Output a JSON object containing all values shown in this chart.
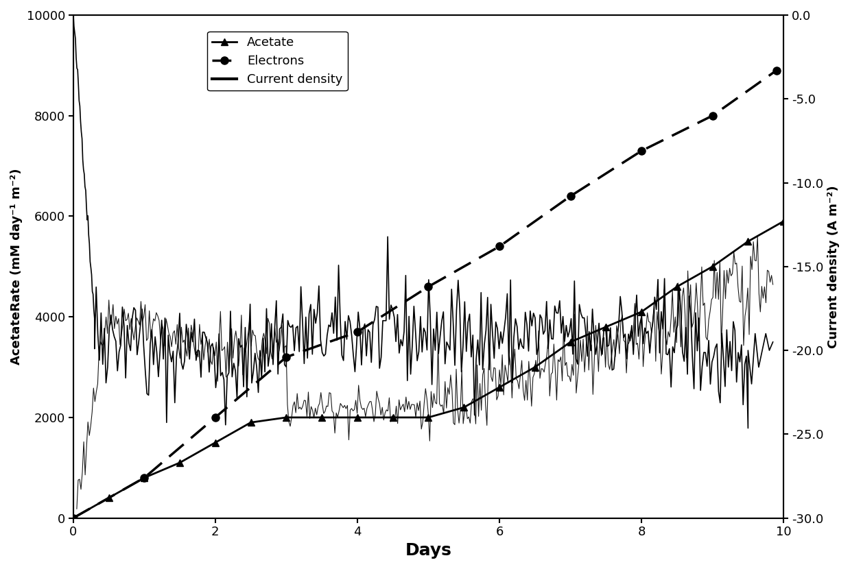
{
  "title": "",
  "xlabel": "Days",
  "ylabel_left": "AcetateRate (mM day⁻¹ m⁻²)",
  "ylabel_right": "Current density (A m⁻²)",
  "xlim": [
    0,
    10
  ],
  "ylim_left": [
    0,
    10000
  ],
  "ylim_right": [
    -30.0,
    0.0
  ],
  "yticks_left": [
    0,
    2000,
    4000,
    6000,
    8000,
    10000
  ],
  "yticks_right": [
    0.0,
    -5.0,
    -10.0,
    -15.0,
    -20.0,
    -25.0,
    -30.0
  ],
  "xticks": [
    0,
    2,
    4,
    6,
    8,
    10
  ],
  "acetate_x": [
    0.0,
    0.5,
    1.0,
    1.5,
    2.0,
    2.5,
    3.0,
    3.5,
    4.0,
    4.5,
    5.0,
    5.5,
    6.0,
    6.5,
    7.0,
    7.5,
    8.0,
    8.5,
    9.0,
    9.5,
    10.0
  ],
  "acetate_y": [
    0,
    400,
    800,
    1100,
    1500,
    1900,
    2000,
    2000,
    2000,
    2000,
    2000,
    2200,
    2600,
    3000,
    3500,
    3800,
    4100,
    4600,
    5000,
    5500,
    5900
  ],
  "electrons_x": [
    0.0,
    1.0,
    2.0,
    3.0,
    4.0,
    5.0,
    6.0,
    7.0,
    8.0,
    9.0,
    9.9
  ],
  "electrons_y": [
    0,
    800,
    2000,
    3200,
    3700,
    4600,
    5400,
    6400,
    7300,
    8000,
    8900
  ],
  "current_density_color": "#000000",
  "background_color": "#ffffff",
  "line_color": "#000000"
}
